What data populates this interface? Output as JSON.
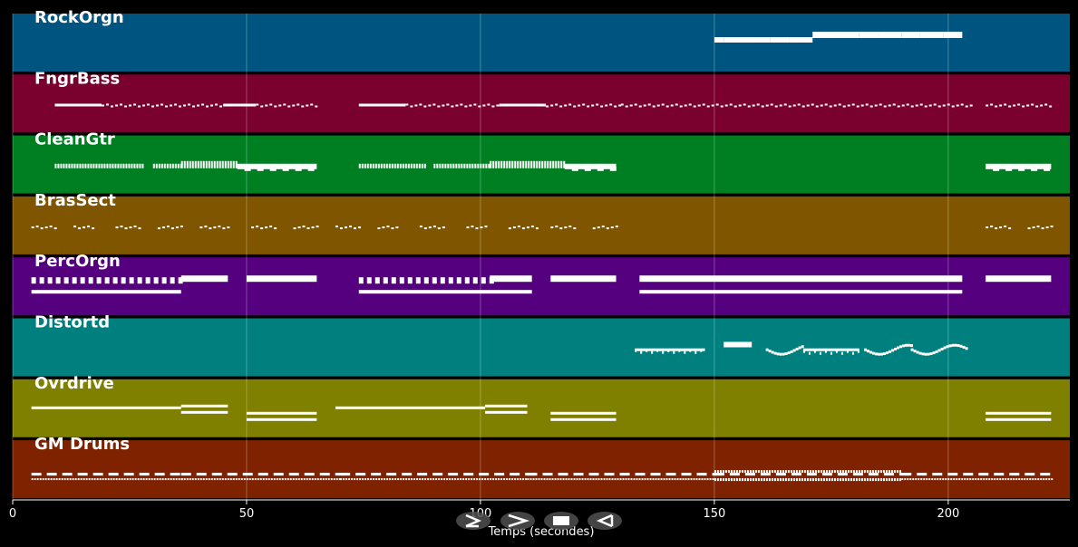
{
  "chart_data": {
    "type": "piano-roll",
    "xlabel": "Temps (secondes)",
    "xlim": [
      0,
      226
    ],
    "x_ticks": [
      0,
      50,
      100,
      150,
      200
    ],
    "tracks": [
      {
        "name": "RockOrgn",
        "color": "#005580",
        "notes": [
          [
            150,
            152,
            "h"
          ],
          [
            152,
            157,
            "h"
          ],
          [
            157,
            162,
            "h"
          ],
          [
            162,
            166,
            "h"
          ],
          [
            166,
            171,
            "h"
          ],
          [
            171,
            176,
            "H"
          ],
          [
            176,
            181,
            "H"
          ],
          [
            181,
            185,
            "H"
          ],
          [
            185,
            190,
            "H"
          ],
          [
            190,
            194,
            "H"
          ],
          [
            194,
            199,
            "H"
          ],
          [
            199,
            203,
            "H"
          ]
        ]
      },
      {
        "name": "FngrBass",
        "color": "#7a002e",
        "notes": [
          [
            9,
            19,
            "l"
          ],
          [
            19,
            45,
            "d"
          ],
          [
            45,
            52,
            "l"
          ],
          [
            52,
            65,
            "d"
          ],
          [
            74,
            84,
            "l"
          ],
          [
            84,
            104,
            "d"
          ],
          [
            104,
            114,
            "l"
          ],
          [
            114,
            130,
            "d"
          ],
          [
            130,
            205,
            "d"
          ],
          [
            208,
            222,
            "d"
          ]
        ]
      },
      {
        "name": "CleanGtr",
        "color": "#007f22",
        "notes": [
          [
            9,
            28,
            "s"
          ],
          [
            30,
            36,
            "s"
          ],
          [
            36,
            48,
            "S"
          ],
          [
            48,
            65,
            "L"
          ],
          [
            74,
            88,
            "s"
          ],
          [
            90,
            102,
            "s"
          ],
          [
            102,
            118,
            "S"
          ],
          [
            118,
            129,
            "L"
          ],
          [
            208,
            222,
            "L"
          ]
        ]
      },
      {
        "name": "BrasSect",
        "color": "#7f5500",
        "notes": [
          [
            4,
            9,
            "d"
          ],
          [
            13,
            17,
            "d"
          ],
          [
            22,
            27,
            "d"
          ],
          [
            31,
            36,
            "d"
          ],
          [
            40,
            46,
            "d"
          ],
          [
            51,
            56,
            "d"
          ],
          [
            60,
            65,
            "d"
          ],
          [
            69,
            74,
            "d"
          ],
          [
            78,
            82,
            "d"
          ],
          [
            87,
            92,
            "d"
          ],
          [
            97,
            101,
            "d"
          ],
          [
            106,
            112,
            "d"
          ],
          [
            115,
            120,
            "d"
          ],
          [
            124,
            129,
            "d"
          ],
          [
            208,
            213,
            "d"
          ],
          [
            217,
            222,
            "d"
          ]
        ]
      },
      {
        "name": "PercOrgn",
        "color": "#55007f",
        "notes": [
          [
            4,
            36,
            "p"
          ],
          [
            36,
            46,
            "H"
          ],
          [
            50,
            65,
            "H"
          ],
          [
            74,
            102,
            "p"
          ],
          [
            102,
            111,
            "H"
          ],
          [
            115,
            129,
            "H"
          ],
          [
            134,
            203,
            "H"
          ],
          [
            208,
            222,
            "H"
          ],
          [
            4,
            36,
            "x"
          ],
          [
            74,
            111,
            "x"
          ],
          [
            134,
            203,
            "x"
          ]
        ]
      },
      {
        "name": "Distortd",
        "color": "#007f7f",
        "notes": [
          [
            133,
            140,
            "m"
          ],
          [
            140,
            148,
            "m"
          ],
          [
            152,
            158,
            "h"
          ],
          [
            161,
            169,
            "w"
          ],
          [
            169,
            181,
            "m"
          ],
          [
            182,
            192,
            "w"
          ],
          [
            192,
            204,
            "w"
          ]
        ]
      },
      {
        "name": "Ovrdrive",
        "color": "#7f7f00",
        "notes": [
          [
            4,
            36,
            "t"
          ],
          [
            36,
            46,
            "T"
          ],
          [
            50,
            65,
            "b"
          ],
          [
            69,
            101,
            "t"
          ],
          [
            101,
            110,
            "T"
          ],
          [
            115,
            129,
            "b"
          ],
          [
            208,
            222,
            "b"
          ]
        ]
      },
      {
        "name": "GM Drums",
        "color": "#7f2200",
        "notes": [
          [
            4,
            36,
            "r"
          ],
          [
            36,
            70,
            "r"
          ],
          [
            70,
            110,
            "r"
          ],
          [
            110,
            150,
            "r"
          ],
          [
            150,
            190,
            "R"
          ],
          [
            190,
            222,
            "r"
          ]
        ]
      }
    ]
  },
  "controls": [
    {
      "name": "play-button",
      "glyph": "play"
    },
    {
      "name": "forward-button",
      "glyph": "forward"
    },
    {
      "name": "stop-button",
      "glyph": "stop"
    },
    {
      "name": "back-button",
      "glyph": "back"
    }
  ]
}
